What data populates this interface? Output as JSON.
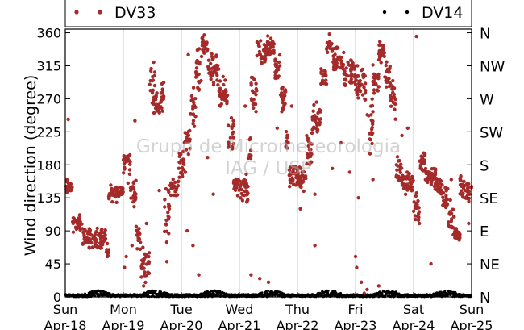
{
  "chart_data": {
    "type": "scatter",
    "ylabel": "Wind direction (degree)",
    "ylim": [
      0,
      365
    ],
    "yticks": [
      0,
      45,
      90,
      135,
      180,
      225,
      270,
      315,
      360
    ],
    "y2ticks": [
      {
        "value": 0,
        "label": "N"
      },
      {
        "value": 45,
        "label": "NE"
      },
      {
        "value": 90,
        "label": "E"
      },
      {
        "value": 135,
        "label": "SE"
      },
      {
        "value": 180,
        "label": "S"
      },
      {
        "value": 225,
        "label": "SW"
      },
      {
        "value": 270,
        "label": "W"
      },
      {
        "value": 315,
        "label": "NW"
      },
      {
        "value": 360,
        "label": "N"
      }
    ],
    "xlim": [
      0,
      7
    ],
    "xticks": [
      {
        "day": 0,
        "weekday": "Sun",
        "date": "Apr-18"
      },
      {
        "day": 1,
        "weekday": "Mon",
        "date": "Apr-19"
      },
      {
        "day": 2,
        "weekday": "Tue",
        "date": "Apr-20"
      },
      {
        "day": 3,
        "weekday": "Wed",
        "date": "Apr-21"
      },
      {
        "day": 4,
        "weekday": "Thu",
        "date": "Apr-22"
      },
      {
        "day": 5,
        "weekday": "Fri",
        "date": "Apr-23"
      },
      {
        "day": 6,
        "weekday": "Sat",
        "date": "Apr-24"
      },
      {
        "day": 7,
        "weekday": "Sun",
        "date": "Apr-25"
      }
    ],
    "grid": "vertical",
    "legend_position": "top",
    "watermark": [
      "Grupo de Micrometeorologia",
      "IAG / USP"
    ],
    "series": [
      {
        "name": "DV33",
        "color": "#a52a2a",
        "segments": [
          [
            0.0,
            0.12,
            150,
            8
          ],
          [
            0.12,
            0.3,
            100,
            8
          ],
          [
            0.3,
            0.7,
            80,
            10
          ],
          [
            0.7,
            0.75,
            60,
            8
          ],
          [
            0.75,
            1.0,
            142,
            8
          ],
          [
            1.0,
            1.12,
            185,
            12
          ],
          [
            1.12,
            1.22,
            140,
            15
          ],
          [
            1.22,
            1.3,
            80,
            15
          ],
          [
            1.3,
            1.45,
            45,
            15
          ],
          [
            1.45,
            1.55,
            290,
            25
          ],
          [
            1.55,
            1.7,
            270,
            18
          ],
          [
            1.7,
            1.8,
            110,
            30
          ],
          [
            1.8,
            1.95,
            150,
            8
          ],
          [
            1.95,
            2.05,
            180,
            12
          ],
          [
            2.05,
            2.15,
            215,
            15
          ],
          [
            2.15,
            2.25,
            260,
            20
          ],
          [
            2.25,
            2.35,
            300,
            25
          ],
          [
            2.35,
            2.45,
            345,
            12
          ],
          [
            2.45,
            2.65,
            310,
            15
          ],
          [
            2.65,
            2.8,
            275,
            15
          ],
          [
            2.8,
            2.9,
            220,
            20
          ],
          [
            2.9,
            3.0,
            150,
            10
          ],
          [
            3.0,
            3.15,
            145,
            15
          ],
          [
            3.15,
            3.2,
            200,
            20
          ],
          [
            3.2,
            3.3,
            270,
            20
          ],
          [
            3.3,
            3.45,
            330,
            15
          ],
          [
            3.45,
            3.6,
            340,
            12
          ],
          [
            3.6,
            3.7,
            310,
            15
          ],
          [
            3.7,
            3.8,
            270,
            15
          ],
          [
            3.8,
            3.85,
            215,
            15
          ],
          [
            3.85,
            4.0,
            165,
            12
          ],
          [
            4.0,
            4.15,
            160,
            12
          ],
          [
            4.15,
            4.25,
            200,
            18
          ],
          [
            4.25,
            4.4,
            240,
            15
          ],
          [
            4.4,
            4.5,
            300,
            15
          ],
          [
            4.5,
            4.6,
            340,
            12
          ],
          [
            4.6,
            4.8,
            325,
            15
          ],
          [
            4.8,
            5.0,
            305,
            12
          ],
          [
            5.0,
            5.2,
            290,
            18
          ],
          [
            5.2,
            5.3,
            240,
            25
          ],
          [
            5.3,
            5.4,
            300,
            20
          ],
          [
            5.4,
            5.5,
            335,
            15
          ],
          [
            5.5,
            5.6,
            305,
            18
          ],
          [
            5.6,
            5.7,
            270,
            20
          ],
          [
            5.7,
            5.8,
            170,
            15
          ],
          [
            5.8,
            6.0,
            155,
            12
          ],
          [
            6.0,
            6.1,
            120,
            15
          ],
          [
            6.1,
            6.2,
            185,
            12
          ],
          [
            6.2,
            6.4,
            165,
            12
          ],
          [
            6.4,
            6.5,
            150,
            10
          ],
          [
            6.5,
            6.6,
            130,
            12
          ],
          [
            6.6,
            6.7,
            110,
            15
          ],
          [
            6.7,
            6.8,
            85,
            12
          ],
          [
            6.8,
            6.9,
            150,
            15
          ],
          [
            6.9,
            7.0,
            145,
            12
          ]
        ],
        "scattered": [
          [
            0.05,
            242
          ],
          [
            1.02,
            40
          ],
          [
            1.05,
            55
          ],
          [
            1.08,
            155
          ],
          [
            1.15,
            70
          ],
          [
            1.2,
            240
          ],
          [
            1.35,
            15
          ],
          [
            1.4,
            100
          ],
          [
            1.62,
            145
          ],
          [
            1.75,
            48
          ],
          [
            2.07,
            170
          ],
          [
            2.1,
            90
          ],
          [
            2.12,
            330
          ],
          [
            2.2,
            70
          ],
          [
            2.3,
            30
          ],
          [
            2.45,
            190
          ],
          [
            2.55,
            140
          ],
          [
            3.1,
            260
          ],
          [
            3.2,
            30
          ],
          [
            3.35,
            25
          ],
          [
            3.5,
            20
          ],
          [
            3.65,
            230
          ],
          [
            3.9,
            260
          ],
          [
            4.05,
            120
          ],
          [
            4.3,
            140
          ],
          [
            4.3,
            70
          ],
          [
            4.6,
            175
          ],
          [
            4.75,
            210
          ],
          [
            4.9,
            170
          ],
          [
            5.0,
            55
          ],
          [
            5.02,
            40
          ],
          [
            5.05,
            135
          ],
          [
            5.1,
            20
          ],
          [
            5.15,
            5
          ],
          [
            5.2,
            10
          ],
          [
            5.25,
            195
          ],
          [
            5.3,
            160
          ],
          [
            5.4,
            15
          ],
          [
            5.8,
            220
          ],
          [
            5.9,
            230
          ],
          [
            6.05,
            355
          ],
          [
            6.1,
            100
          ],
          [
            6.3,
            45
          ],
          [
            6.65,
            160
          ],
          [
            6.95,
            100
          ]
        ]
      },
      {
        "name": "DV14",
        "color": "#000000",
        "baseline": {
          "low": 0,
          "high": 9
        }
      }
    ]
  }
}
